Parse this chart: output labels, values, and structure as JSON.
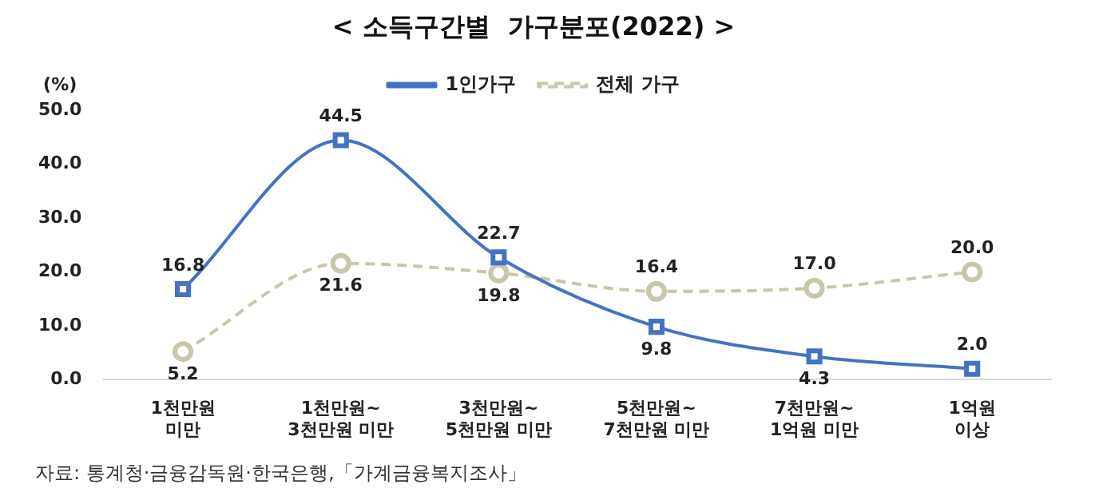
{
  "chart_data": {
    "type": "line",
    "title": "< 소득구간별  가구분포(2022) >",
    "ylabel": "(%)",
    "categories": [
      "1천만원\n미만",
      "1천만원~\n3천만원 미만",
      "3천만원~\n5천만원 미만",
      "5천만원~\n7천만원 미만",
      "7천만원~\n1억원 미만",
      "1억원\n이상"
    ],
    "series": [
      {
        "name": "1인가구",
        "color": "#4472c4",
        "marker": "square",
        "line_style": "solid",
        "values": [
          16.8,
          44.5,
          22.7,
          9.8,
          4.3,
          2.0
        ],
        "value_labels": [
          "16.8",
          "44.5",
          "22.7",
          "9.8",
          "4.3",
          "2.0"
        ]
      },
      {
        "name": "전체 가구",
        "color": "#c9c6aa",
        "marker": "circle",
        "line_style": "dashed",
        "values": [
          5.2,
          21.6,
          19.8,
          16.4,
          17.0,
          20.0
        ],
        "value_labels": [
          "5.2",
          "21.6",
          "19.8",
          "16.4",
          "17.0",
          "20.0"
        ]
      }
    ],
    "ylim": [
      0,
      50
    ],
    "yticks": [
      {
        "value": 0,
        "label": "0.0"
      },
      {
        "value": 10,
        "label": "10.0"
      },
      {
        "value": 20,
        "label": "20.0"
      },
      {
        "value": 30,
        "label": "30.0"
      },
      {
        "value": 40,
        "label": "40.0"
      },
      {
        "value": 50,
        "label": "50.0"
      }
    ],
    "grid": false,
    "legend": "top",
    "annotations": [
      "자료: 통계청·금융감독원·한국은행,「가계금융복지조사」"
    ]
  }
}
